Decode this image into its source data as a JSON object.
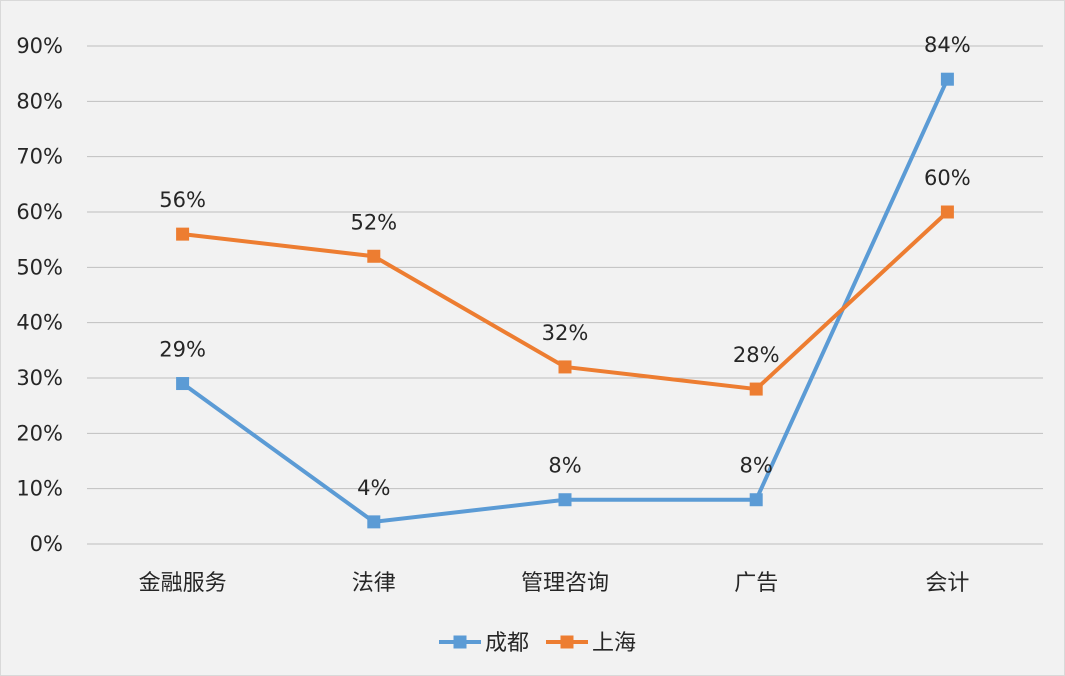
{
  "chart_data": {
    "type": "line",
    "categories": [
      "金融服务",
      "法律",
      "管理咨询",
      "广告",
      "会计"
    ],
    "series": [
      {
        "name": "成都",
        "values": [
          29,
          4,
          8,
          8,
          84
        ],
        "color": "#5b9bd5"
      },
      {
        "name": "上海",
        "values": [
          56,
          52,
          32,
          28,
          60
        ],
        "color": "#ed7d31"
      }
    ],
    "value_suffix": "%",
    "ylim": [
      0,
      90
    ],
    "y_ticks": [
      0,
      10,
      20,
      30,
      40,
      50,
      60,
      70,
      80,
      90
    ],
    "grid": true,
    "legend_position": "bottom",
    "data_labels": true,
    "background": "#f2f2f2",
    "gridline_color": "#bfbfbf"
  }
}
